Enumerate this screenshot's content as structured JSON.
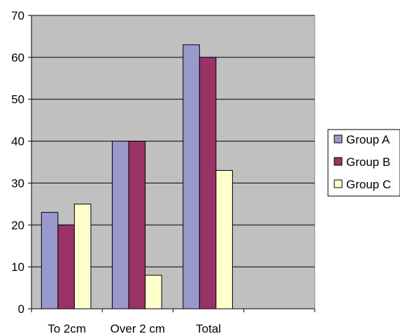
{
  "chart_data": {
    "type": "bar",
    "categories": [
      "To 2cm",
      "Over 2 cm",
      "Total",
      ""
    ],
    "series": [
      {
        "name": "Group A",
        "values": [
          23,
          40,
          63,
          null
        ],
        "color": "#9999cc"
      },
      {
        "name": "Group B",
        "values": [
          20,
          40,
          60,
          null
        ],
        "color": "#993366"
      },
      {
        "name": "Group C",
        "values": [
          25,
          8,
          33,
          null
        ],
        "color": "#ffffcc"
      }
    ],
    "title": "",
    "xlabel": "",
    "ylabel": "",
    "ylim": [
      0,
      70
    ],
    "yticks": [
      0,
      10,
      20,
      30,
      40,
      50,
      60,
      70
    ],
    "grid": true,
    "legend_position": "right",
    "plot_background": "#c0c0c0"
  }
}
